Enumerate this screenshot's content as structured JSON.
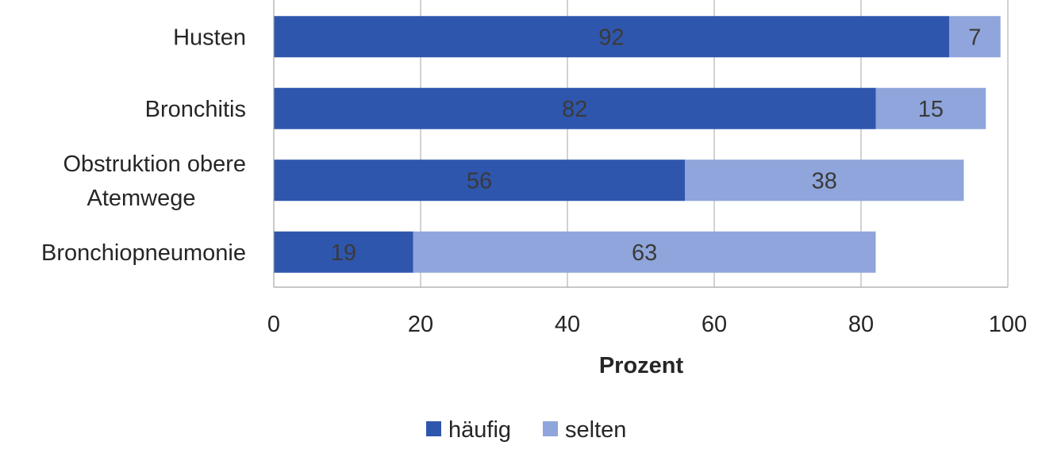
{
  "chart_data": {
    "type": "bar",
    "orientation": "horizontal",
    "stacked": true,
    "categories": [
      "Husten",
      "Bronchitis",
      "Obstruktion obere Atemwege",
      "Bronchiopneumonie"
    ],
    "series": [
      {
        "name": "häufig",
        "values": [
          92,
          82,
          56,
          19
        ],
        "color": "#2f56ad"
      },
      {
        "name": "selten",
        "values": [
          7,
          15,
          38,
          63
        ],
        "color": "#8fa5db"
      }
    ],
    "xlabel": "Prozent",
    "ylabel": "",
    "xlim": [
      0,
      100
    ],
    "xticks": [
      0,
      20,
      40,
      60,
      80,
      100
    ],
    "grid": true,
    "legend_position": "bottom",
    "data_labels": true
  }
}
